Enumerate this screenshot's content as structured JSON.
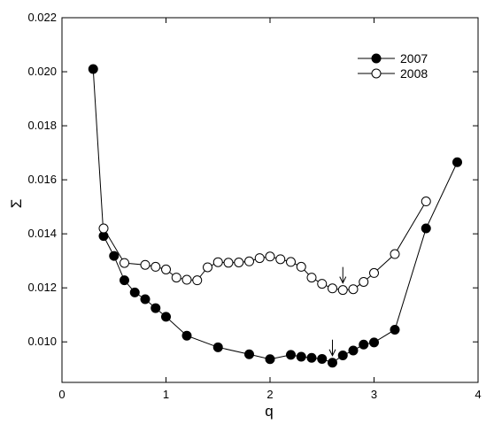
{
  "chart_data": {
    "type": "line",
    "xlabel": "q",
    "ylabel": "Σ",
    "xlim": [
      0,
      4
    ],
    "ylim": [
      0.0085,
      0.022
    ],
    "x_ticks": [
      0,
      1,
      2,
      3,
      4
    ],
    "x_tick_labels": [
      "0",
      "1",
      "2",
      "3",
      "4"
    ],
    "y_ticks": [
      0.01,
      0.012,
      0.014,
      0.016,
      0.018,
      0.02,
      0.022
    ],
    "y_tick_labels": [
      "0.010",
      "0.012",
      "0.014",
      "0.016",
      "0.018",
      "0.020",
      "0.022"
    ],
    "grid": false,
    "legend_position": "top-right",
    "series": [
      {
        "name": "2007",
        "marker": "filled-circle",
        "color": "#000000",
        "x": [
          0.3,
          0.4,
          0.5,
          0.6,
          0.7,
          0.8,
          0.9,
          1.0,
          1.2,
          1.5,
          1.8,
          2.0,
          2.2,
          2.3,
          2.4,
          2.5,
          2.6,
          2.7,
          2.8,
          2.9,
          3.0,
          3.2,
          3.5,
          3.8
        ],
        "y": [
          0.0201,
          0.01392,
          0.01318,
          0.01228,
          0.01183,
          0.01158,
          0.01125,
          0.01093,
          0.01023,
          0.0098,
          0.00954,
          0.00936,
          0.00952,
          0.00945,
          0.00941,
          0.00937,
          0.00923,
          0.0095,
          0.00968,
          0.0099,
          0.00998,
          0.01045,
          0.0142,
          0.01665
        ]
      },
      {
        "name": "2008",
        "marker": "open-circle",
        "color": "#000000",
        "x": [
          0.4,
          0.6,
          0.8,
          0.9,
          1.0,
          1.1,
          1.2,
          1.3,
          1.4,
          1.5,
          1.6,
          1.7,
          1.8,
          1.9,
          2.0,
          2.1,
          2.2,
          2.3,
          2.4,
          2.5,
          2.6,
          2.7,
          2.8,
          2.9,
          3.0,
          3.2,
          3.5
        ],
        "y": [
          0.0142,
          0.01292,
          0.01285,
          0.01278,
          0.01268,
          0.01238,
          0.0123,
          0.01228,
          0.01276,
          0.01295,
          0.01293,
          0.01294,
          0.01298,
          0.0131,
          0.01316,
          0.01306,
          0.01296,
          0.01278,
          0.01238,
          0.01215,
          0.01198,
          0.01192,
          0.01195,
          0.01222,
          0.01255,
          0.01325,
          0.0152
        ]
      }
    ],
    "annotations": [
      {
        "kind": "arrow",
        "series": "2007",
        "x": 2.6,
        "y": 0.00923
      },
      {
        "kind": "arrow",
        "series": "2008",
        "x": 2.7,
        "y": 0.01192
      }
    ]
  }
}
